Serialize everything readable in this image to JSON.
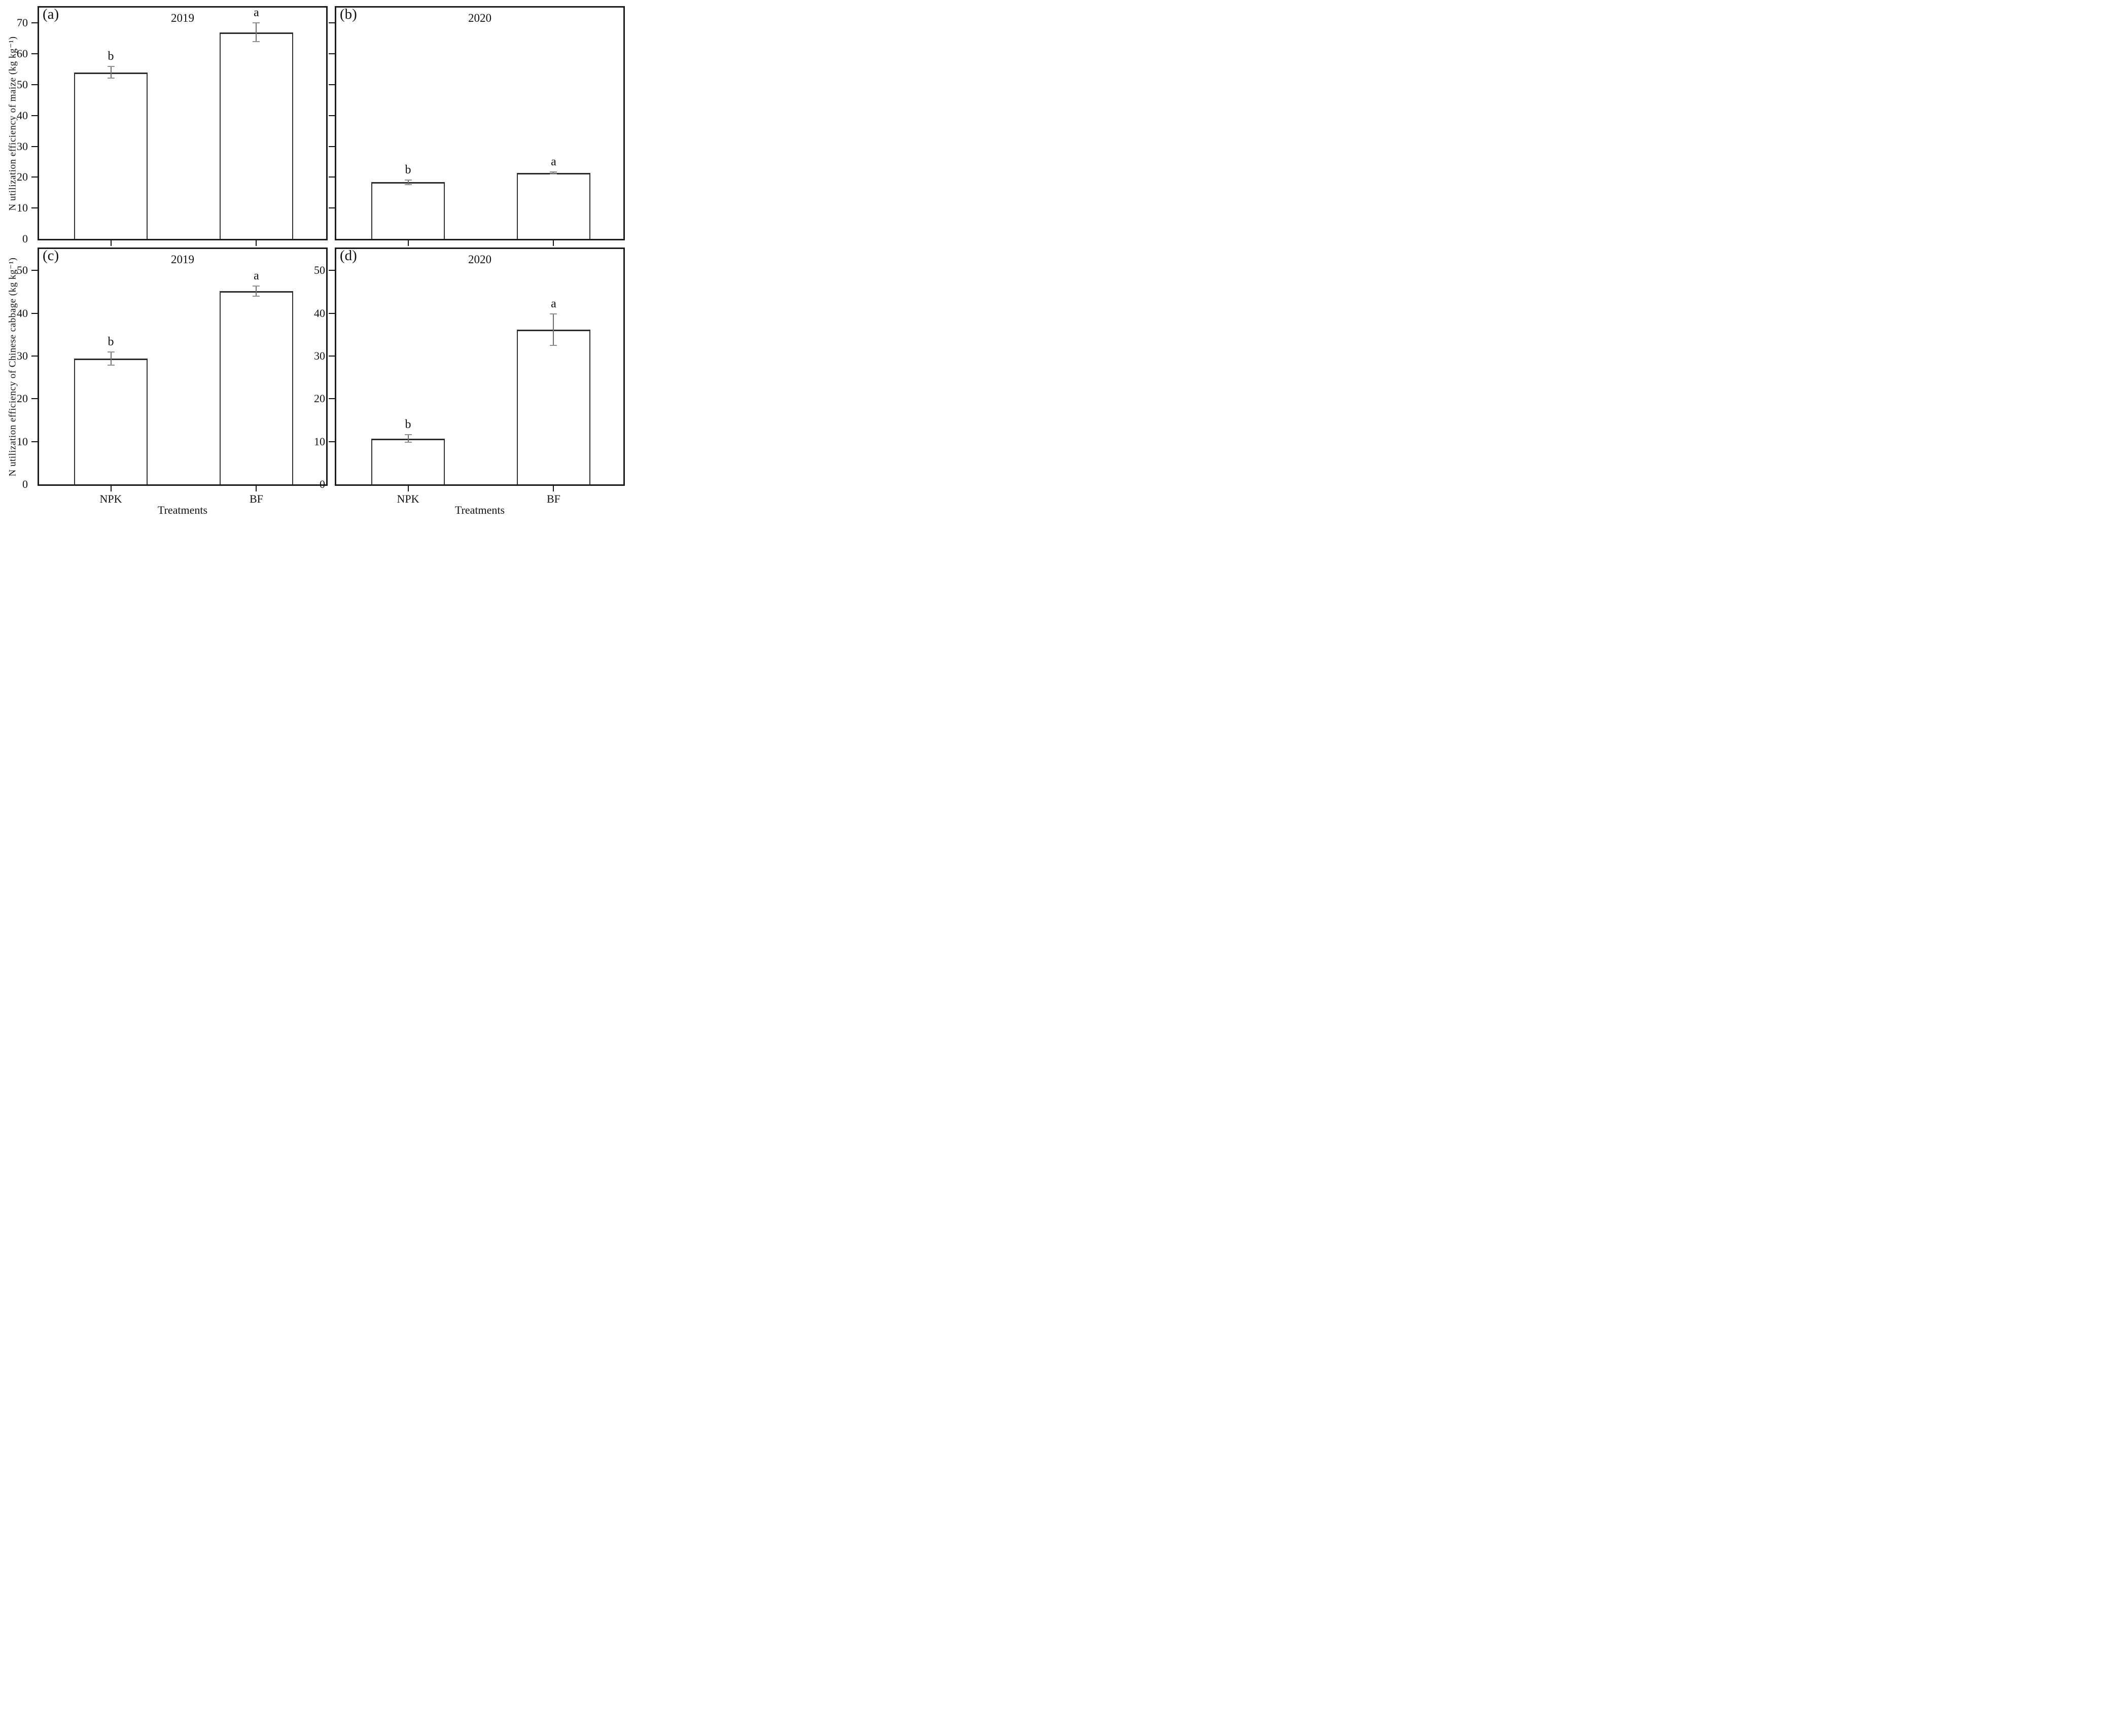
{
  "figure": {
    "ylabel_maize": "N utilization efficiency of maize (kg kg⁻¹)",
    "ylabel_cabbage": "N utilization efficiency of Chinese cabbage (kg kg⁻¹)",
    "xlabel": "Treatments",
    "categories": [
      "NPK",
      "BF"
    ],
    "colors": {
      "background": "#ffffff",
      "axis": "#1c1c1c",
      "bar_fill": "#ffffff",
      "bar_edge": "#333333",
      "error_bar": "#6e6e6e",
      "text": "#111111"
    }
  },
  "chart_data": [
    {
      "type": "bar",
      "id": "a",
      "panel_label": "(a)",
      "title": "2019",
      "row": 0,
      "ylabel": "N utilization efficiency of maize (kg kg⁻¹)",
      "categories": [
        "NPK",
        "BF"
      ],
      "values": [
        54.0,
        67.0
      ],
      "errors": [
        2.1,
        3.2
      ],
      "sig_letters": [
        "b",
        "a"
      ],
      "ylim": [
        0,
        75
      ],
      "yticks": [
        0,
        10,
        20,
        30,
        40,
        50,
        60,
        70
      ],
      "show_y_tick_labels": true,
      "show_x_tick_labels": false,
      "grid": false,
      "legend": "none"
    },
    {
      "type": "bar",
      "id": "b",
      "panel_label": "(b)",
      "title": "2020",
      "row": 0,
      "ylabel": "N utilization efficiency of maize (kg kg⁻¹)",
      "categories": [
        "NPK",
        "BF"
      ],
      "values": [
        18.4,
        21.4
      ],
      "errors": [
        0.9,
        0.5
      ],
      "sig_letters": [
        "b",
        "a"
      ],
      "ylim": [
        0,
        75
      ],
      "yticks": [
        0,
        10,
        20,
        30,
        40,
        50,
        60,
        70
      ],
      "show_y_tick_labels": false,
      "show_x_tick_labels": false,
      "grid": false,
      "legend": "none"
    },
    {
      "type": "bar",
      "id": "c",
      "panel_label": "(c)",
      "title": "2019",
      "row": 1,
      "ylabel": "N utilization efficiency of Chinese cabbage (kg kg⁻¹)",
      "categories": [
        "NPK",
        "BF"
      ],
      "values": [
        29.4,
        45.2
      ],
      "errors": [
        1.7,
        1.3
      ],
      "sig_letters": [
        "b",
        "a"
      ],
      "ylim": [
        0,
        55
      ],
      "yticks": [
        0,
        10,
        20,
        30,
        40,
        50
      ],
      "show_y_tick_labels": true,
      "show_x_tick_labels": true,
      "grid": false,
      "legend": "none"
    },
    {
      "type": "bar",
      "id": "d",
      "panel_label": "(d)",
      "title": "2020",
      "row": 1,
      "ylabel": "N utilization efficiency of Chinese cabbage (kg kg⁻¹)",
      "categories": [
        "NPK",
        "BF"
      ],
      "values": [
        10.7,
        36.2
      ],
      "errors": [
        1.0,
        3.8
      ],
      "sig_letters": [
        "b",
        "a"
      ],
      "ylim": [
        0,
        55
      ],
      "yticks": [
        0,
        10,
        20,
        30,
        40,
        50
      ],
      "show_y_tick_labels": true,
      "show_x_tick_labels": true,
      "grid": false,
      "legend": "none"
    }
  ]
}
